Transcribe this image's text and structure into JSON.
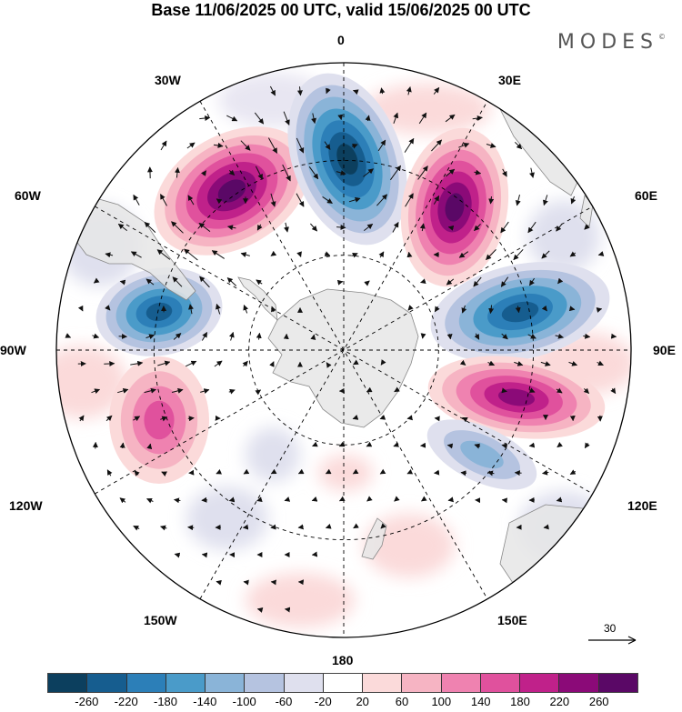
{
  "title": "Base 11/06/2025 00 UTC, valid 15/06/2025 00 UTC",
  "brand": "MODES",
  "brand_mark": "©",
  "map": {
    "projection": "south-polar-stereographic",
    "longitude_labels": {
      "top": "0",
      "upper_left": "30W",
      "upper_right": "30E",
      "left_upper": "60W",
      "right_upper": "60E",
      "left": "90W",
      "right": "90E",
      "left_lower": "120W",
      "right_lower": "120E",
      "lower_left": "150W",
      "lower_right": "150E",
      "bottom": "180"
    },
    "field": "geopotential height anomaly with wind vectors",
    "anomaly_centers": [
      {
        "sector": "30W",
        "sign": "positive",
        "value": 260
      },
      {
        "sector": "0",
        "sign": "negative",
        "value": -260
      },
      {
        "sector": "30E",
        "sign": "positive",
        "value": 260
      },
      {
        "sector": "60W",
        "sign": "negative",
        "value": -220
      },
      {
        "sector": "75E",
        "sign": "negative",
        "value": -220
      },
      {
        "sector": "105E",
        "sign": "positive",
        "value": 220
      },
      {
        "sector": "105W",
        "sign": "positive",
        "value": 140
      },
      {
        "sector": "120E",
        "sign": "negative",
        "value": -100
      }
    ]
  },
  "reference_vector": {
    "label": "30"
  },
  "colorbar": {
    "ticks": [
      "-260",
      "-220",
      "-180",
      "-140",
      "-100",
      "-60",
      "-20",
      "20",
      "60",
      "100",
      "140",
      "180",
      "220",
      "260"
    ],
    "colors": [
      "#0c3f5e",
      "#165d8f",
      "#2c7fb8",
      "#4a9bc9",
      "#8ab4d8",
      "#b5c3e0",
      "#dfe0ee",
      "#ffffff",
      "#fbdada",
      "#f6b4c3",
      "#ef82b0",
      "#e0519d",
      "#c0218a",
      "#8b0a78",
      "#5a0866"
    ]
  }
}
